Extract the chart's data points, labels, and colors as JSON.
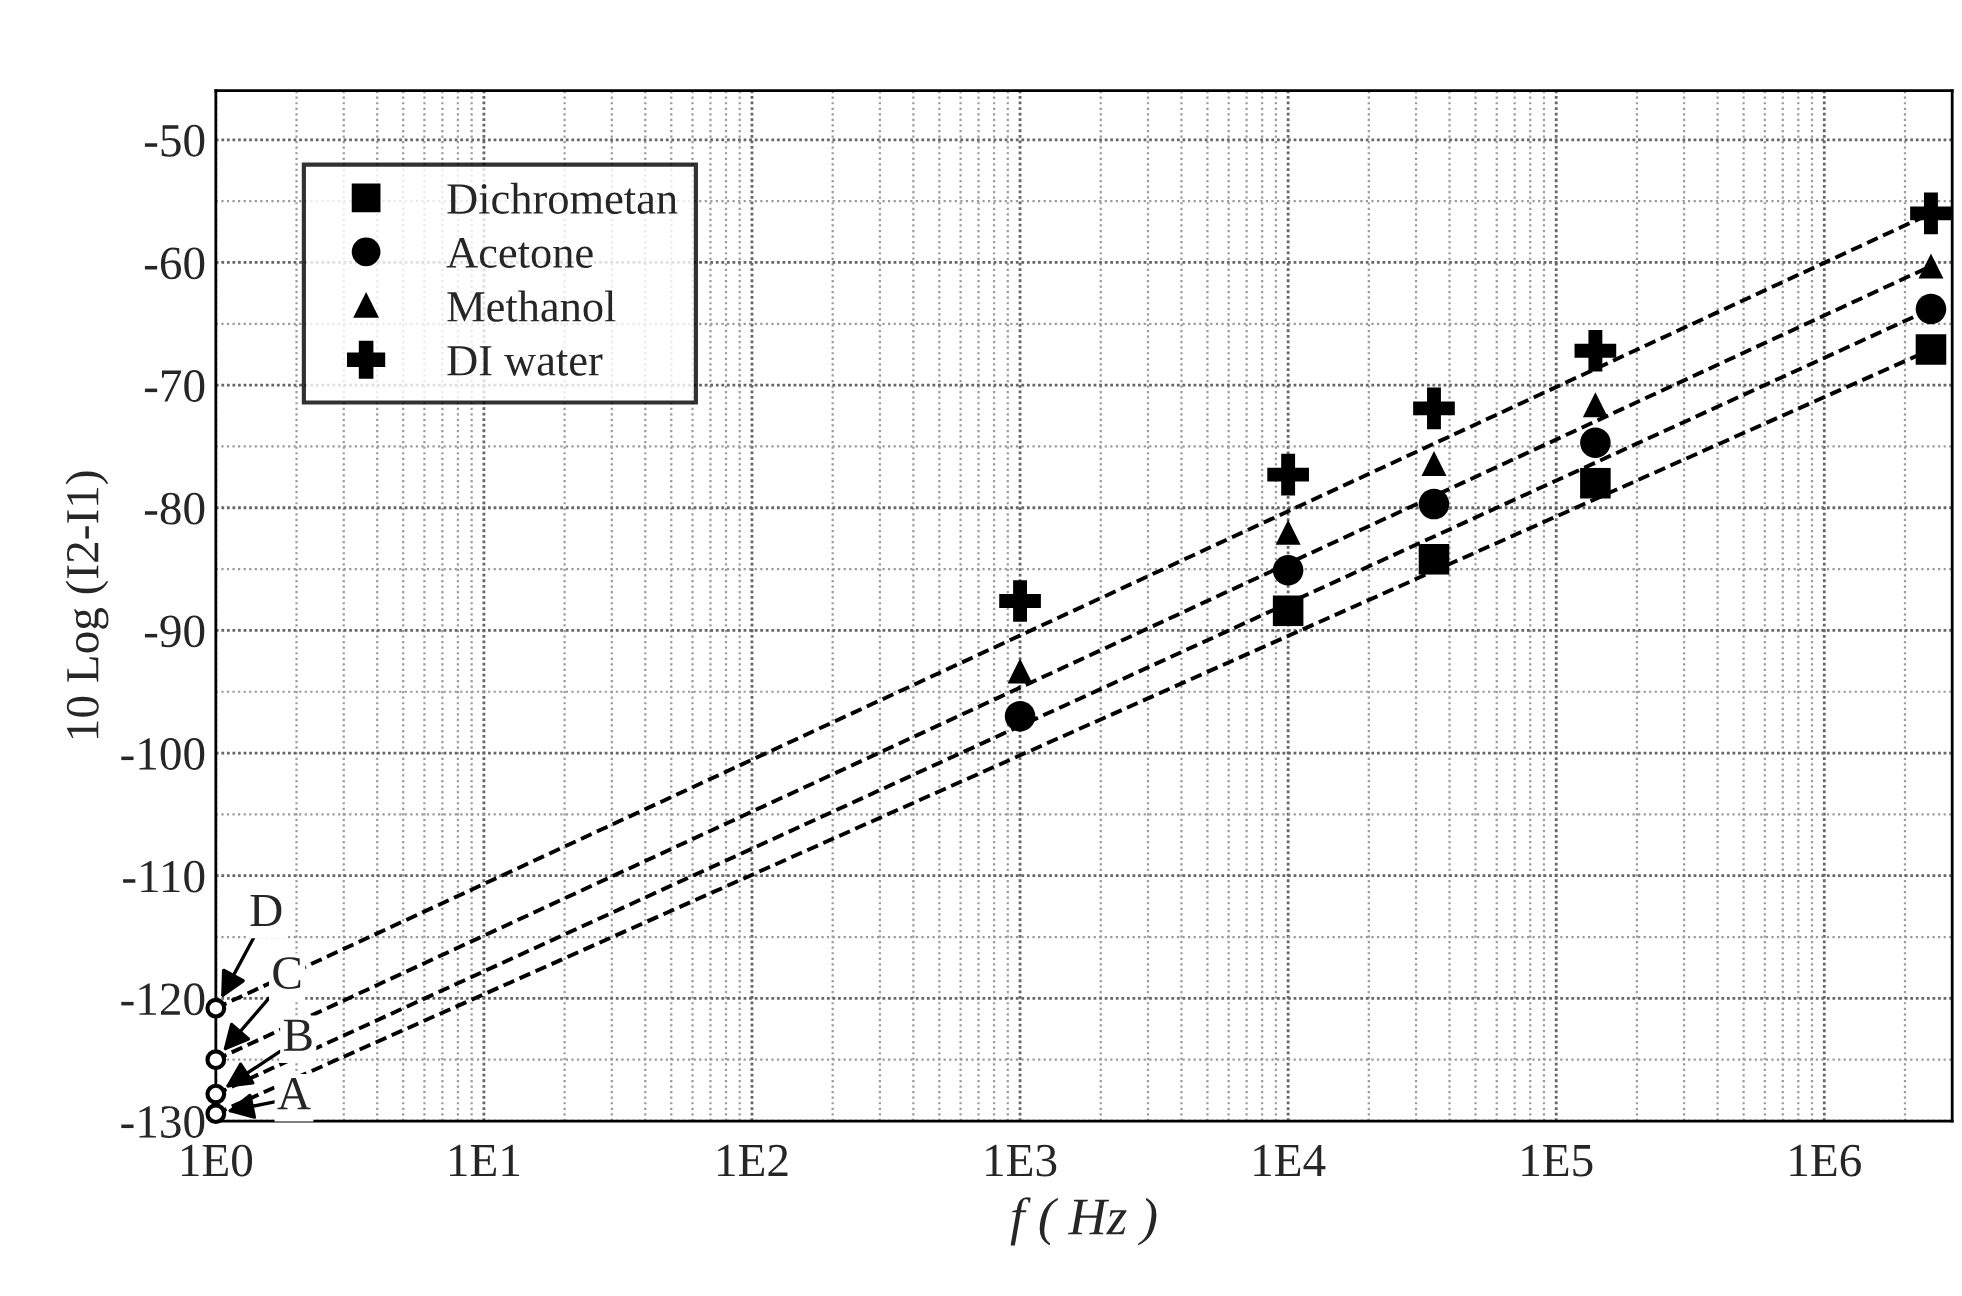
{
  "chart_data": {
    "type": "scatter",
    "xlabel": "f ( Hz )",
    "ylabel": "10 Log (I2-I1)",
    "log": "x",
    "xlim": [
      1,
      3000000
    ],
    "xticks": [
      {
        "value": 1,
        "label": "1E0"
      },
      {
        "value": 10,
        "label": "1E1"
      },
      {
        "value": 100,
        "label": "1E2"
      },
      {
        "value": 1000,
        "label": "1E3"
      },
      {
        "value": 10000,
        "label": "1E4"
      },
      {
        "value": 100000,
        "label": "1E5"
      },
      {
        "value": 1000000,
        "label": "1E6"
      }
    ],
    "ylim": [
      -130,
      -46
    ],
    "yticks": [
      -130,
      -120,
      -110,
      -100,
      -90,
      -80,
      -70,
      -60,
      -50
    ],
    "grid": true,
    "legend": "top left",
    "series": [
      {
        "name": "Dichrometan",
        "color": "#000000",
        "marker": "square",
        "x": [
          10000,
          35000,
          140000,
          2500000
        ],
        "values": [
          -88.4,
          -84.2,
          -78.0,
          -67.1
        ]
      },
      {
        "name": "Acetone",
        "color": "#000000",
        "marker": "circle",
        "x": [
          1000,
          10000,
          35000,
          140000,
          2500000
        ],
        "values": [
          -97.0,
          -85.1,
          -79.7,
          -74.7,
          -63.8
        ]
      },
      {
        "name": "Methanol",
        "color": "#000000",
        "marker": "triangle",
        "x": [
          1000,
          10000,
          35000,
          140000,
          2500000
        ],
        "values": [
          -93.3,
          -82.0,
          -76.4,
          -71.6,
          -60.3
        ]
      },
      {
        "name": "DI water",
        "color": "#000000",
        "marker": "cross",
        "x": [
          1000,
          10000,
          35000,
          140000,
          2500000
        ],
        "values": [
          -87.6,
          -77.3,
          -71.9,
          -67.2,
          -56.0
        ]
      },
      {
        "type": "line",
        "color": "#000000",
        "line_style": "dashed",
        "x": [
          1,
          2500000
        ],
        "values": [
          -129.4,
          -67.1
        ]
      },
      {
        "type": "line",
        "color": "#000000",
        "line_style": "dashed",
        "x": [
          1,
          2500000
        ],
        "values": [
          -127.8,
          -63.8
        ]
      },
      {
        "type": "line",
        "color": "#000000",
        "line_style": "dashed",
        "x": [
          1,
          2500000
        ],
        "values": [
          -125.0,
          -60.3
        ]
      },
      {
        "type": "line",
        "color": "#000000",
        "line_style": "dashed",
        "x": [
          1,
          2500000
        ],
        "values": [
          -120.8,
          -56.0
        ]
      }
    ],
    "annotations": [
      "A",
      "B",
      "C",
      "D"
    ]
  }
}
